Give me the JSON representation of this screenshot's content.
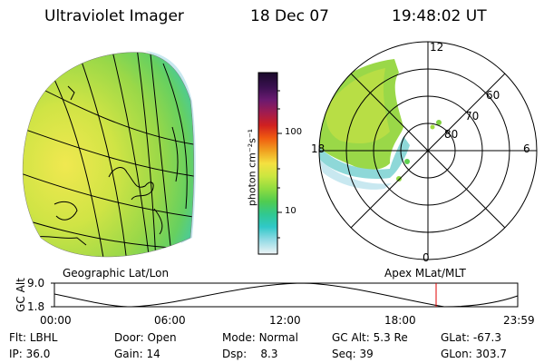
{
  "header": {
    "instrument": "Ultraviolet Imager",
    "date": "18 Dec 07",
    "time": "19:48:02 UT"
  },
  "colorbar": {
    "unit": "photon cm⁻²s⁻¹",
    "ticks": [
      "100",
      "10"
    ],
    "colors": [
      "#1a0a2a",
      "#3a1050",
      "#5a1a70",
      "#8a1c60",
      "#c01a30",
      "#e03020",
      "#f06a10",
      "#f0a020",
      "#f4e040",
      "#d8e840",
      "#a0e040",
      "#60d050",
      "#30c880",
      "#30c8c8",
      "#80d8e0",
      "#c8e8f0",
      "#e8f2f6"
    ]
  },
  "left_map": {
    "label": "Geographic Lat/Lon"
  },
  "polar_plot": {
    "label": "Apex MLat/MLT",
    "mlt_labels": [
      "12",
      "18",
      "6",
      "0"
    ],
    "mlat_labels": [
      "60",
      "70",
      "80"
    ]
  },
  "timeline": {
    "ylabel": "GC Alt",
    "y_ticks": [
      "9.0",
      "1.8"
    ],
    "x_ticks": [
      "00:00",
      "06:00",
      "12:00",
      "18:00",
      "23:59"
    ],
    "current_time_marker": "19:48"
  },
  "info": {
    "filter_label": "Flt:",
    "filter_value": "LBHL",
    "ip_label": "IP:",
    "ip_value": "36.0",
    "door_label": "Door:",
    "door_value": "Open",
    "gain_label": "Gain:",
    "gain_value": "14",
    "mode_label": "Mode:",
    "mode_value": "Normal",
    "dsp_label": "Dsp:",
    "dsp_value": "8.3",
    "gcalt_label": "GC Alt:",
    "gcalt_value": "5.3 Re",
    "seq_label": "Seq:",
    "seq_value": "39",
    "glat_label": "GLat:",
    "glat_value": "-67.3",
    "glon_label": "GLon:",
    "glon_value": "303.7"
  }
}
